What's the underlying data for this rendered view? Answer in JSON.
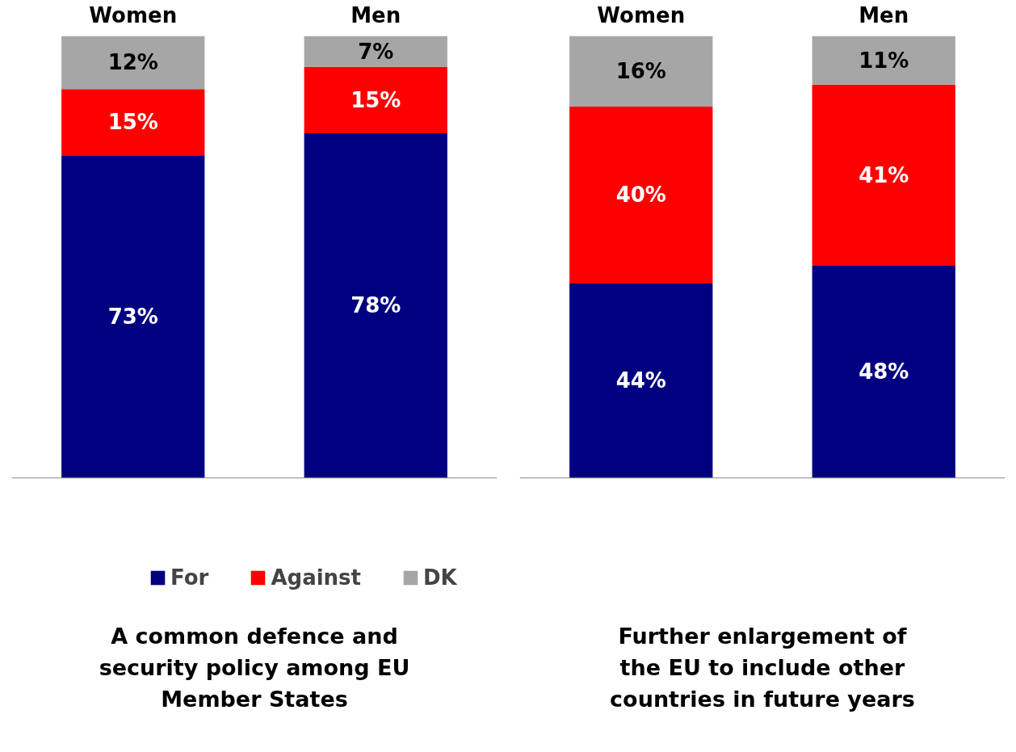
{
  "chart_data": [
    {
      "type": "bar",
      "stacked": true,
      "title": "A common defence and security policy among EU Member States",
      "categories": [
        "Women",
        "Men"
      ],
      "legend": "bottom",
      "series": [
        {
          "name": "For",
          "color": "#000080",
          "values": [
            73,
            78
          ],
          "value_labels": [
            "73%",
            "78%"
          ]
        },
        {
          "name": "Against",
          "color": "#ff0000",
          "values": [
            15,
            15
          ],
          "value_labels": [
            "15%",
            "15%"
          ]
        },
        {
          "name": "DK",
          "color": "#a6a6a6",
          "values": [
            12,
            7
          ],
          "value_labels": [
            "12%",
            "7%"
          ]
        }
      ]
    },
    {
      "type": "bar",
      "stacked": true,
      "title": "Further enlargement of the EU to include other countries in future years",
      "categories": [
        "Women",
        "Men"
      ],
      "series": [
        {
          "color": "#000080",
          "values": [
            44,
            48
          ],
          "value_labels": [
            "44%",
            "48%"
          ]
        },
        {
          "color": "#ff0000",
          "values": [
            40,
            41
          ],
          "value_labels": [
            "40%",
            "41%"
          ]
        },
        {
          "color": "#a6a6a6",
          "values": [
            16,
            11
          ],
          "value_labels": [
            "16%",
            "11%"
          ]
        }
      ]
    }
  ]
}
